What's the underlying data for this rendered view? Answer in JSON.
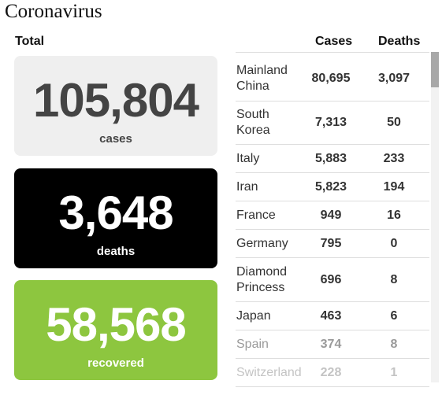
{
  "page": {
    "title": "Coronavirus"
  },
  "totals": {
    "heading": "Total",
    "cases": {
      "value": "105,804",
      "label": "cases",
      "color": "#efefef"
    },
    "deaths": {
      "value": "3,648",
      "label": "deaths",
      "color": "#000000"
    },
    "recovered": {
      "value": "58,568",
      "label": "recovered",
      "color": "#8dc63f"
    }
  },
  "table": {
    "headers": {
      "cases": "Cases",
      "deaths": "Deaths"
    },
    "rows": [
      {
        "country": "Mainland China",
        "cases": "80,695",
        "deaths": "3,097"
      },
      {
        "country": "South Korea",
        "cases": "7,313",
        "deaths": "50"
      },
      {
        "country": "Italy",
        "cases": "5,883",
        "deaths": "233"
      },
      {
        "country": "Iran",
        "cases": "5,823",
        "deaths": "194"
      },
      {
        "country": "France",
        "cases": "949",
        "deaths": "16"
      },
      {
        "country": "Germany",
        "cases": "795",
        "deaths": "0"
      },
      {
        "country": "Diamond Princess",
        "cases": "696",
        "deaths": "8"
      },
      {
        "country": "Japan",
        "cases": "463",
        "deaths": "6"
      },
      {
        "country": "Spain",
        "cases": "374",
        "deaths": "8"
      },
      {
        "country": "Switzerland",
        "cases": "228",
        "deaths": "1"
      }
    ]
  }
}
